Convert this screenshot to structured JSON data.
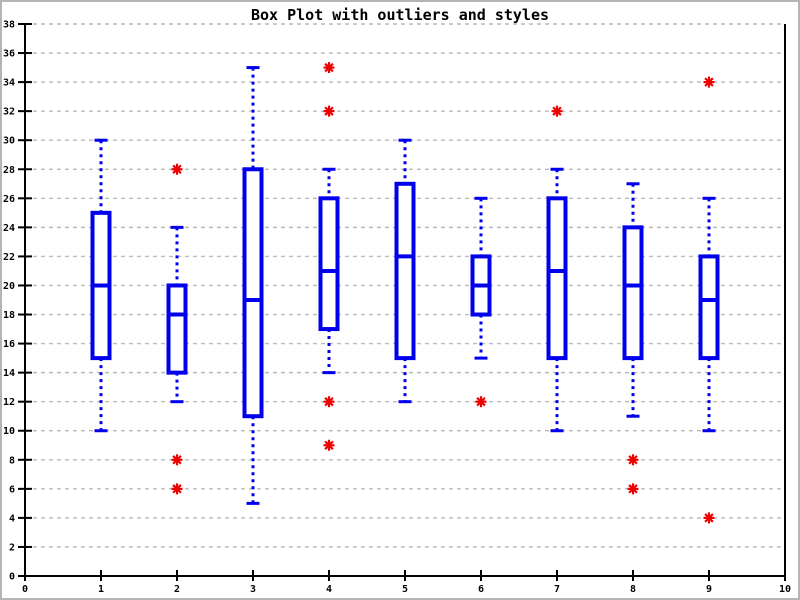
{
  "chart_data": {
    "type": "boxplot",
    "title": "Box Plot with outliers and styles",
    "xlabel": "",
    "ylabel": "",
    "xlim": [
      0,
      10
    ],
    "ylim": [
      0,
      38
    ],
    "xticks": [
      0,
      1,
      2,
      3,
      4,
      5,
      6,
      7,
      8,
      9,
      10
    ],
    "yticks": [
      0,
      2,
      4,
      6,
      8,
      10,
      12,
      14,
      16,
      18,
      20,
      22,
      24,
      26,
      28,
      30,
      32,
      34,
      36,
      38
    ],
    "grid": "horizontal-dashed",
    "legend": "none",
    "marker": "red-asterisk",
    "boxes": [
      {
        "x": 1,
        "whisker_low": 10,
        "q1": 15,
        "median": 20,
        "q3": 25,
        "whisker_high": 30,
        "outliers": []
      },
      {
        "x": 2,
        "whisker_low": 12,
        "q1": 14,
        "median": 18,
        "q3": 20,
        "whisker_high": 24,
        "outliers": [
          28,
          8,
          6
        ]
      },
      {
        "x": 3,
        "whisker_low": 5,
        "q1": 11,
        "median": 19,
        "q3": 28,
        "whisker_high": 35,
        "outliers": []
      },
      {
        "x": 4,
        "whisker_low": 14,
        "q1": 17,
        "median": 21,
        "q3": 26,
        "whisker_high": 28,
        "outliers": [
          35,
          32,
          12,
          9
        ]
      },
      {
        "x": 5,
        "whisker_low": 12,
        "q1": 15,
        "median": 22,
        "q3": 27,
        "whisker_high": 30,
        "outliers": []
      },
      {
        "x": 6,
        "whisker_low": 15,
        "q1": 18,
        "median": 20,
        "q3": 22,
        "whisker_high": 26,
        "outliers": [
          12
        ]
      },
      {
        "x": 7,
        "whisker_low": 10,
        "q1": 15,
        "median": 21,
        "q3": 26,
        "whisker_high": 28,
        "outliers": [
          32
        ]
      },
      {
        "x": 8,
        "whisker_low": 11,
        "q1": 15,
        "median": 20,
        "q3": 24,
        "whisker_high": 27,
        "outliers": [
          8,
          6
        ]
      },
      {
        "x": 9,
        "whisker_low": 10,
        "q1": 15,
        "median": 19,
        "q3": 22,
        "whisker_high": 26,
        "outliers": [
          34,
          4
        ]
      }
    ],
    "colors": {
      "box": "#0000ee",
      "outlier": "#ee0000",
      "grid": "#bbbbbb",
      "axis": "#000000",
      "background": "#ffffff",
      "frame": "#b4b4b4"
    }
  }
}
